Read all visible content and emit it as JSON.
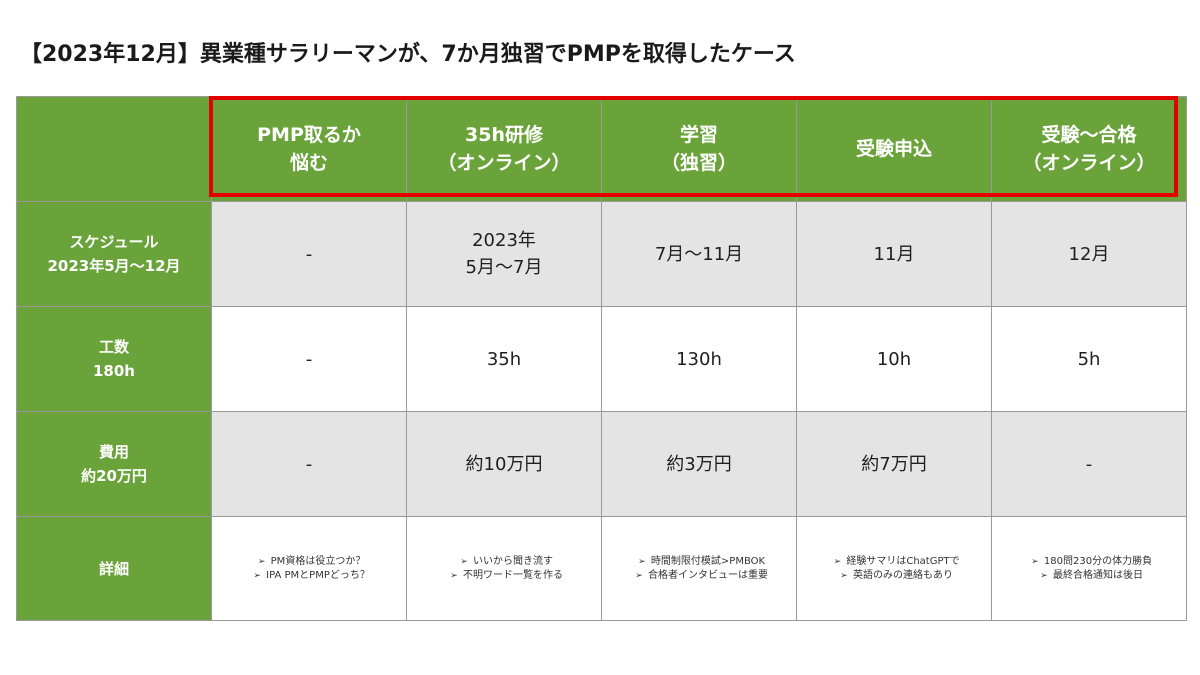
{
  "title": "【2023年12月】異業種サラリーマンが、7か月独習でPMPを取得したケース",
  "colors": {
    "green": "#6aa33a",
    "gray_row": "#e4e4e4",
    "highlight": "#e30000"
  },
  "header": {
    "corner": "",
    "columns": [
      {
        "line1": "PMP取るか",
        "line2": "悩む"
      },
      {
        "line1": "35h研修",
        "line2": "（オンライン）"
      },
      {
        "line1": "学習",
        "line2": "（独習）"
      },
      {
        "line1": "受験申込",
        "line2": ""
      },
      {
        "line1": "受験～合格",
        "line2": "（オンライン）"
      }
    ]
  },
  "rows": {
    "schedule": {
      "label1": "スケジュール",
      "label2": "2023年5月～12月",
      "cells": [
        {
          "line1": "-",
          "line2": ""
        },
        {
          "line1": "2023年",
          "line2": "5月～7月"
        },
        {
          "line1": "7月～11月",
          "line2": ""
        },
        {
          "line1": "11月",
          "line2": ""
        },
        {
          "line1": "12月",
          "line2": ""
        }
      ]
    },
    "effort": {
      "label1": "工数",
      "label2": "180h",
      "cells": [
        "-",
        "35h",
        "130h",
        "10h",
        "5h"
      ]
    },
    "cost": {
      "label1": "費用",
      "label2": "約20万円",
      "cells": [
        "-",
        "約10万円",
        "約3万円",
        "約7万円",
        "-"
      ]
    },
    "detail": {
      "label": "詳細",
      "bullet": "➢",
      "cells": [
        [
          "PM資格は役立つか？",
          "IPA PMとPMPどっち？"
        ],
        [
          "いいから聞き流す",
          "不明ワード一覧を作る"
        ],
        [
          "時間制限付模試>PMBOK",
          "合格者インタビューは重要"
        ],
        [
          "経験サマリはChatGPTで",
          "英語のみの連絡もあり"
        ],
        [
          "180問230分の体力勝負",
          "最終合格通知は後日"
        ]
      ]
    }
  }
}
